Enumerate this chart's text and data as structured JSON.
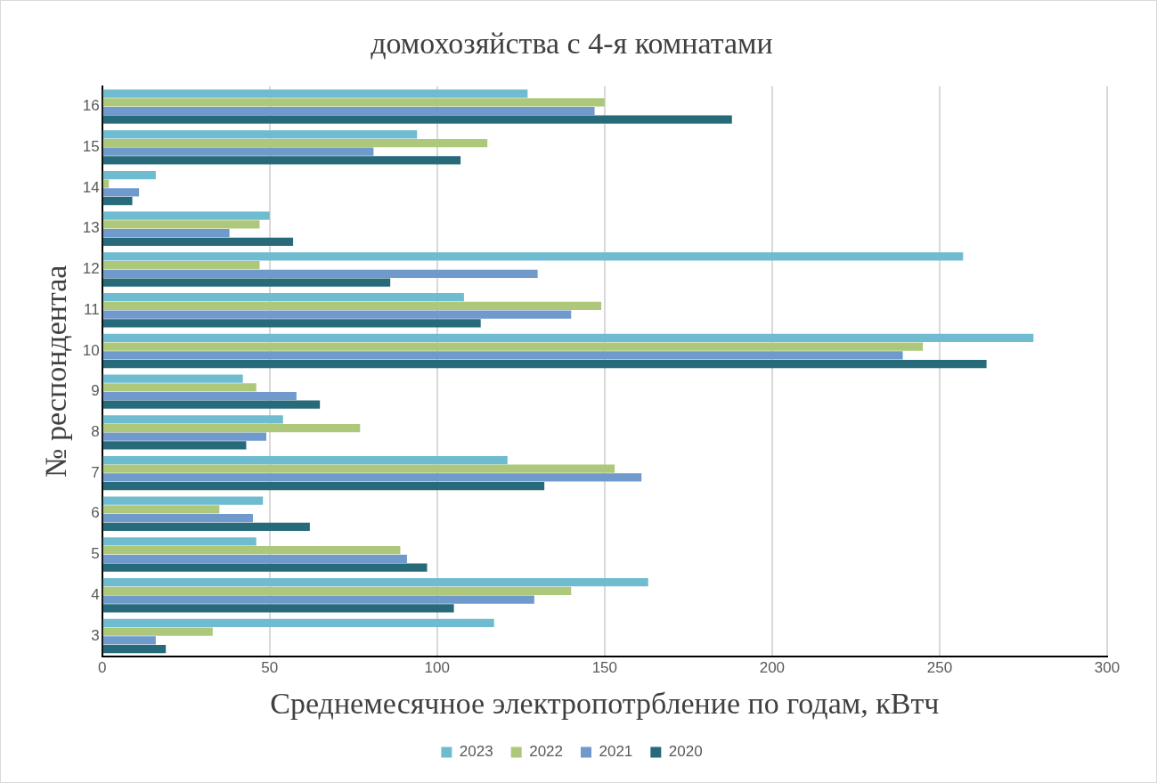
{
  "chart_data": {
    "type": "bar",
    "orientation": "horizontal",
    "title": "домохозяйства с 4-я комнатами",
    "xlabel": "Среднемесячное электропотрбление по годам, кВтч",
    "ylabel": "№ респондентаа",
    "categories": [
      "16",
      "15",
      "14",
      "13",
      "12",
      "11",
      "10",
      "9",
      "8",
      "7",
      "6",
      "5",
      "4",
      "3"
    ],
    "series": [
      {
        "name": "2023",
        "color": "#6fbcd0",
        "values": [
          127,
          94,
          16,
          50,
          257,
          108,
          278,
          42,
          54,
          121,
          48,
          46,
          163,
          117
        ]
      },
      {
        "name": "2022",
        "color": "#adc87a",
        "values": [
          150,
          115,
          2,
          47,
          47,
          149,
          245,
          46,
          77,
          153,
          35,
          89,
          140,
          33
        ]
      },
      {
        "name": "2021",
        "color": "#7099cc",
        "values": [
          147,
          81,
          11,
          38,
          130,
          140,
          239,
          58,
          49,
          161,
          45,
          91,
          129,
          16
        ]
      },
      {
        "name": "2020",
        "color": "#276a7a",
        "values": [
          188,
          107,
          9,
          57,
          86,
          113,
          264,
          65,
          43,
          132,
          62,
          97,
          105,
          19
        ]
      }
    ],
    "xlim": [
      0,
      300
    ],
    "xticks": [
      0,
      50,
      100,
      150,
      200,
      250,
      300
    ],
    "grid": "x",
    "legend": "bottom"
  }
}
